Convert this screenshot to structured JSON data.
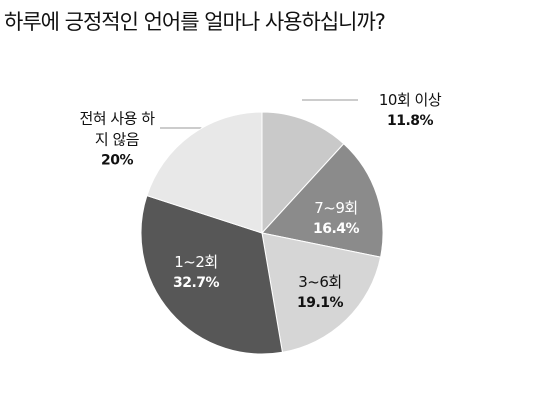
{
  "chart_data": {
    "type": "pie",
    "title": "하루에 긍정적인 언어를 얼마나 사용하십니까?",
    "categories": [
      "10회 이상",
      "7~9회",
      "3~6회",
      "1~2회",
      "전혀 사용 하지 않음"
    ],
    "values": [
      11.8,
      16.4,
      19.1,
      32.7,
      20
    ],
    "value_labels": [
      "11.8%",
      "16.4%",
      "19.1%",
      "32.7%",
      "20%"
    ],
    "colors": [
      "#c9c9c9",
      "#8b8b8b",
      "#d6d6d6",
      "#575757",
      "#e8e8e8"
    ]
  }
}
